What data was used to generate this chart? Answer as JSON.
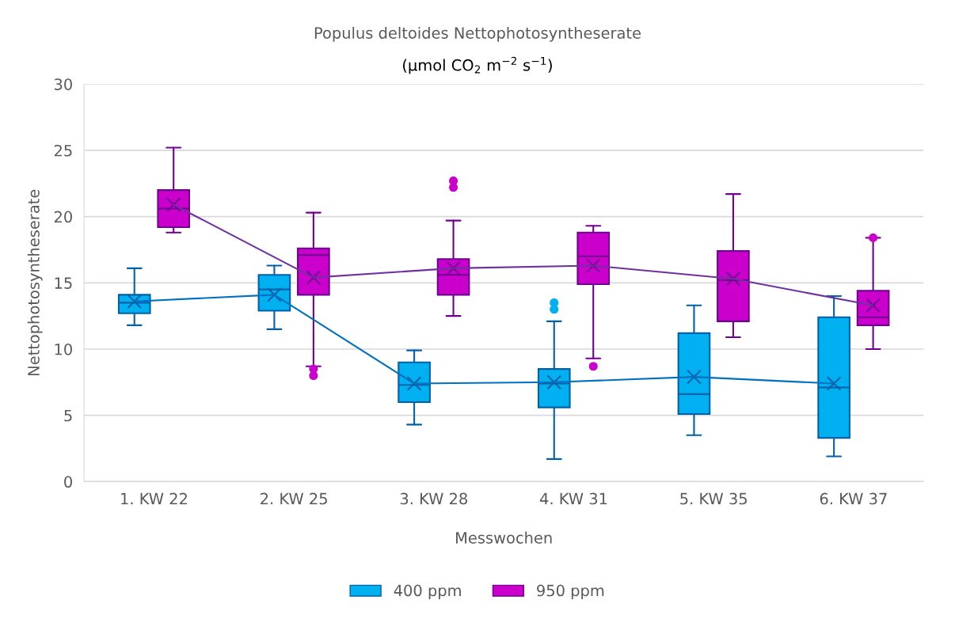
{
  "chart_data": {
    "type": "box",
    "title": "Populus deltoides Nettophotosyntheserate",
    "subtitle": "(μmol CO$_{2}$ m$^{−2}$ s$^{−1}$)",
    "xlabel": "Messwochen",
    "ylabel": "Nettophotosyntheserate",
    "categories": [
      "1. KW 22",
      "2. KW 25",
      "3. KW 28",
      "4. KW 31",
      "5. KW 35",
      "6. KW 37"
    ],
    "ylim": [
      0,
      30
    ],
    "yticks": [
      0,
      5,
      10,
      15,
      20,
      25,
      30
    ],
    "grid": "y",
    "legend": "bottom",
    "marker": "circle",
    "series": [
      {
        "name": "400 ppm",
        "color": "#00b0f0",
        "boxes": [
          {
            "low": 11.8,
            "q1": 12.7,
            "median": 13.5,
            "q3": 14.1,
            "high": 16.1,
            "mean": 13.6
          },
          {
            "low": 11.5,
            "q1": 12.9,
            "median": 14.5,
            "q3": 15.6,
            "high": 16.3,
            "mean": 14.1
          },
          {
            "low": 4.3,
            "q1": 6.0,
            "median": 7.3,
            "q3": 9.0,
            "high": 9.9,
            "mean": 7.4
          },
          {
            "low": 1.7,
            "q1": 5.6,
            "median": 7.4,
            "q3": 8.5,
            "high": 12.1,
            "mean": 7.5,
            "outliers": [
              13.5,
              13.0
            ]
          },
          {
            "low": 3.5,
            "q1": 5.1,
            "median": 6.6,
            "q3": 11.2,
            "high": 13.3,
            "mean": 7.9
          },
          {
            "low": 1.9,
            "q1": 3.3,
            "median": 7.1,
            "q3": 12.4,
            "high": 14.0,
            "mean": 7.4
          }
        ]
      },
      {
        "name": "950 ppm",
        "color": "#cc00cc",
        "boxes": [
          {
            "low": 18.8,
            "q1": 19.2,
            "median": 20.6,
            "q3": 22.0,
            "high": 25.2,
            "mean": 20.9
          },
          {
            "low": 8.7,
            "q1": 14.1,
            "median": 17.1,
            "q3": 17.6,
            "high": 20.3,
            "mean": 15.4,
            "outliers": [
              8.5,
              8.0
            ]
          },
          {
            "low": 12.5,
            "q1": 14.1,
            "median": 15.6,
            "q3": 16.8,
            "high": 19.7,
            "mean": 16.1,
            "outliers": [
              22.7,
              22.2
            ]
          },
          {
            "low": 9.3,
            "q1": 14.9,
            "median": 17.0,
            "q3": 18.8,
            "high": 19.3,
            "mean": 16.3,
            "outliers": [
              8.7
            ]
          },
          {
            "low": 10.9,
            "q1": 12.1,
            "median": 15.2,
            "q3": 17.4,
            "high": 21.7,
            "mean": 15.3
          },
          {
            "low": 10.0,
            "q1": 11.8,
            "median": 12.4,
            "q3": 14.4,
            "high": 18.4,
            "mean": 13.3,
            "outliers": [
              18.4
            ]
          }
        ]
      },
      {
        "type": "line",
        "marker": "none",
        "color": "#0070c0",
        "values": [
          13.6,
          14.1,
          7.4,
          7.5,
          7.9,
          7.4
        ]
      },
      {
        "type": "line",
        "marker": "none",
        "color": "#7030a0",
        "values": [
          20.9,
          15.4,
          16.1,
          16.3,
          15.3,
          13.3
        ]
      }
    ]
  }
}
